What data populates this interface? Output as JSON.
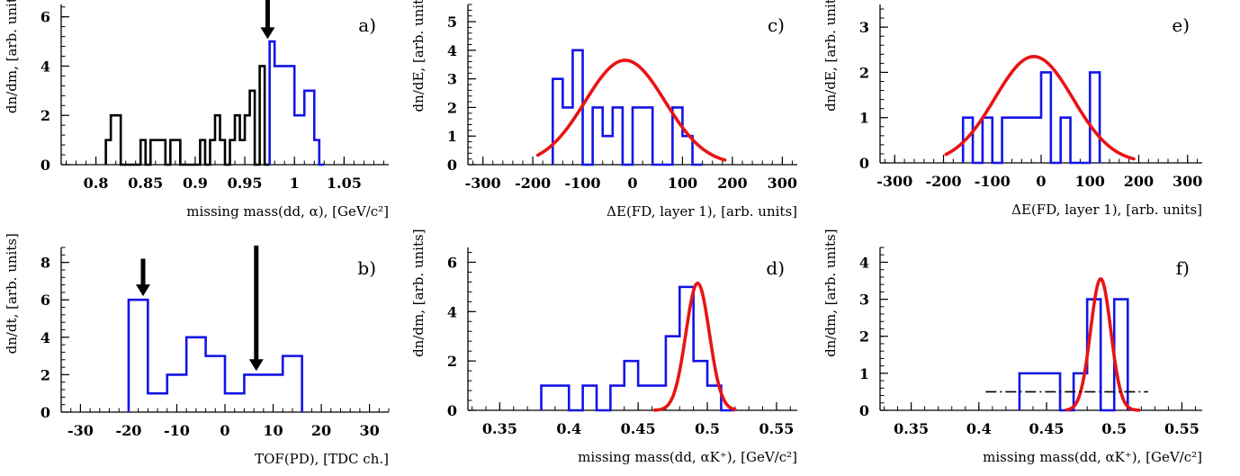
{
  "figure": {
    "colors": {
      "hist": "#1414e6",
      "hist_black": "#000000",
      "fit": "#e81414",
      "axis": "#000000"
    }
  },
  "chart_data": [
    {
      "id": "a",
      "type": "histogram",
      "panel_label": "a)",
      "xlabel": "missing mass(dd, α), [GeV/c²]",
      "ylabel": "dn/dm, [arb. units]",
      "xlim": [
        0.765,
        1.095
      ],
      "ylim": [
        0,
        6.5
      ],
      "xticks": [
        0.8,
        0.85,
        0.9,
        0.95,
        1.0,
        1.05
      ],
      "xtick_labels": [
        "0.8",
        "0.85",
        "0.9",
        "0.95",
        "1",
        "1.05"
      ],
      "yticks": [
        0,
        2,
        4,
        6
      ],
      "ytick_labels": [
        "0",
        "2",
        "4",
        "6"
      ],
      "series": [
        {
          "color": "black",
          "edges": [
            0.81,
            0.815,
            0.82,
            0.825,
            0.83,
            0.835,
            0.84,
            0.845,
            0.85,
            0.855,
            0.86,
            0.865,
            0.87,
            0.875,
            0.88,
            0.885,
            0.89,
            0.895,
            0.9,
            0.905,
            0.91,
            0.915,
            0.92,
            0.925,
            0.93,
            0.935,
            0.94,
            0.945,
            0.95,
            0.955,
            0.96,
            0.965,
            0.97,
            0.975
          ],
          "counts": [
            1,
            2,
            2,
            0,
            0,
            0,
            0,
            1,
            0,
            1,
            1,
            1,
            0,
            1,
            1,
            0,
            0,
            0,
            0,
            1,
            0,
            1,
            2,
            1,
            0,
            1,
            2,
            1,
            2,
            3,
            0,
            4,
            0
          ]
        },
        {
          "color": "blue",
          "edges": [
            0.975,
            0.98,
            0.985,
            0.99,
            0.995,
            1.0,
            1.005,
            1.01,
            1.015,
            1.02,
            1.025,
            1.03
          ],
          "counts": [
            5,
            4,
            4,
            4,
            4,
            2,
            2,
            3,
            3,
            1,
            0
          ]
        }
      ],
      "arrows": [
        {
          "x": 0.973,
          "y_top": 6.9,
          "y_bottom": 5.1
        }
      ]
    },
    {
      "id": "b",
      "type": "histogram",
      "panel_label": "b)",
      "xlabel": "TOF(PD), [TDC ch.]",
      "ylabel": "dn/dt, [arb. units]",
      "xlim": [
        -34,
        34
      ],
      "ylim": [
        0,
        8.8
      ],
      "xticks": [
        -30,
        -20,
        -10,
        0,
        10,
        20,
        30
      ],
      "xtick_labels": [
        "-30",
        "-20",
        "-10",
        "0",
        "10",
        "20",
        "30"
      ],
      "yticks": [
        0,
        2,
        4,
        6,
        8
      ],
      "ytick_labels": [
        "0",
        "2",
        "4",
        "6",
        "8"
      ],
      "series": [
        {
          "color": "blue",
          "edges": [
            -20,
            -16,
            -12,
            -8,
            -4,
            0,
            4,
            8,
            12,
            16
          ],
          "counts": [
            6,
            1,
            2,
            4,
            3,
            1,
            2,
            2,
            3
          ]
        }
      ],
      "arrows": [
        {
          "x": -17,
          "y_top": 8.2,
          "y_bottom": 6.2
        },
        {
          "x": 6.5,
          "y_top": 8.9,
          "y_bottom": 2.2
        }
      ]
    },
    {
      "id": "c",
      "type": "histogram",
      "panel_label": "c)",
      "xlabel": "ΔE(FD, layer 1), [arb. units]",
      "ylabel": "dn/dE, [arb. units]",
      "xlim": [
        -330,
        330
      ],
      "ylim": [
        0,
        5.6
      ],
      "xticks": [
        -300,
        -200,
        -100,
        0,
        100,
        200,
        300
      ],
      "xtick_labels": [
        "-300",
        "-200",
        "-100",
        "0",
        "100",
        "200",
        "300"
      ],
      "yticks": [
        0,
        1,
        2,
        3,
        4,
        5
      ],
      "ytick_labels": [
        "0",
        "1",
        "2",
        "3",
        "4",
        "5"
      ],
      "series": [
        {
          "color": "blue",
          "edges": [
            -160,
            -140,
            -120,
            -100,
            -80,
            -60,
            -40,
            -20,
            0,
            20,
            40,
            60,
            80,
            100,
            120,
            140
          ],
          "counts": [
            3,
            2,
            4,
            0,
            2,
            1,
            2,
            0,
            2,
            2,
            0,
            0,
            2,
            1,
            0
          ]
        }
      ],
      "gauss": {
        "amplitude": 3.65,
        "mean": -15,
        "sigma": 80,
        "x_range": [
          -190,
          185
        ]
      }
    },
    {
      "id": "d",
      "type": "histogram",
      "panel_label": "d)",
      "xlabel": "missing mass(dd, αK⁺), [GeV/c²]",
      "ylabel": "dn/dm, [arb. units]",
      "xlim": [
        0.327,
        0.565
      ],
      "ylim": [
        0,
        6.6
      ],
      "xticks": [
        0.35,
        0.4,
        0.45,
        0.5,
        0.55
      ],
      "xtick_labels": [
        "0.35",
        "0.4",
        "0.45",
        "0.5",
        "0.55"
      ],
      "yticks": [
        0,
        2,
        4,
        6
      ],
      "ytick_labels": [
        "0",
        "2",
        "4",
        "6"
      ],
      "series": [
        {
          "color": "blue",
          "edges": [
            0.38,
            0.39,
            0.4,
            0.41,
            0.42,
            0.43,
            0.44,
            0.45,
            0.46,
            0.47,
            0.48,
            0.49,
            0.5,
            0.51,
            0.52
          ],
          "counts": [
            1,
            1,
            0,
            1,
            0,
            1,
            2,
            1,
            1,
            3,
            5,
            2,
            1,
            0
          ]
        }
      ],
      "gauss": {
        "amplitude": 5.15,
        "mean": 0.493,
        "sigma": 0.0085,
        "x_range": [
          0.462,
          0.52
        ]
      }
    },
    {
      "id": "e",
      "type": "histogram",
      "panel_label": "e)",
      "xlabel": "ΔE(FD, layer 1), [arb. units]",
      "ylabel": "dn/dE, [arb. units]",
      "xlim": [
        -330,
        330
      ],
      "ylim": [
        0,
        3.5
      ],
      "xticks": [
        -300,
        -200,
        -100,
        0,
        100,
        200,
        300
      ],
      "xtick_labels": [
        "-300",
        "-200",
        "-100",
        "0",
        "100",
        "200",
        "300"
      ],
      "yticks": [
        0,
        1,
        2,
        3
      ],
      "ytick_labels": [
        "0",
        "1",
        "2",
        "3"
      ],
      "series": [
        {
          "color": "blue",
          "edges": [
            -160,
            -140,
            -120,
            -100,
            -80,
            -60,
            -40,
            -20,
            0,
            20,
            40,
            60,
            80,
            100,
            120
          ],
          "counts": [
            1,
            0,
            1,
            0,
            1,
            1,
            1,
            1,
            2,
            0,
            1,
            0,
            0,
            2
          ]
        }
      ],
      "gauss": {
        "amplitude": 2.35,
        "mean": -15,
        "sigma": 80,
        "x_range": [
          -195,
          190
        ]
      }
    },
    {
      "id": "f",
      "type": "histogram",
      "panel_label": "f)",
      "xlabel": "missing mass(dd, αK⁺), [GeV/c²]",
      "ylabel": "dn/dm, [arb. units]",
      "xlim": [
        0.327,
        0.565
      ],
      "ylim": [
        0,
        4.4
      ],
      "xticks": [
        0.35,
        0.4,
        0.45,
        0.5,
        0.55
      ],
      "xtick_labels": [
        "0.35",
        "0.4",
        "0.45",
        "0.5",
        "0.55"
      ],
      "yticks": [
        0,
        1,
        2,
        3,
        4
      ],
      "ytick_labels": [
        "0",
        "1",
        "2",
        "3",
        "4"
      ],
      "series": [
        {
          "color": "blue",
          "edges": [
            0.43,
            0.44,
            0.45,
            0.46,
            0.47,
            0.48,
            0.49,
            0.5,
            0.51
          ],
          "counts": [
            1,
            1,
            1,
            0,
            1,
            3,
            0,
            3
          ]
        }
      ],
      "gauss": {
        "amplitude": 3.55,
        "mean": 0.49,
        "sigma": 0.0075,
        "x_range": [
          0.465,
          0.518
        ]
      },
      "background_line": {
        "y": 0.5,
        "x_range": [
          0.405,
          0.525
        ],
        "style": "dash-dot"
      }
    }
  ]
}
